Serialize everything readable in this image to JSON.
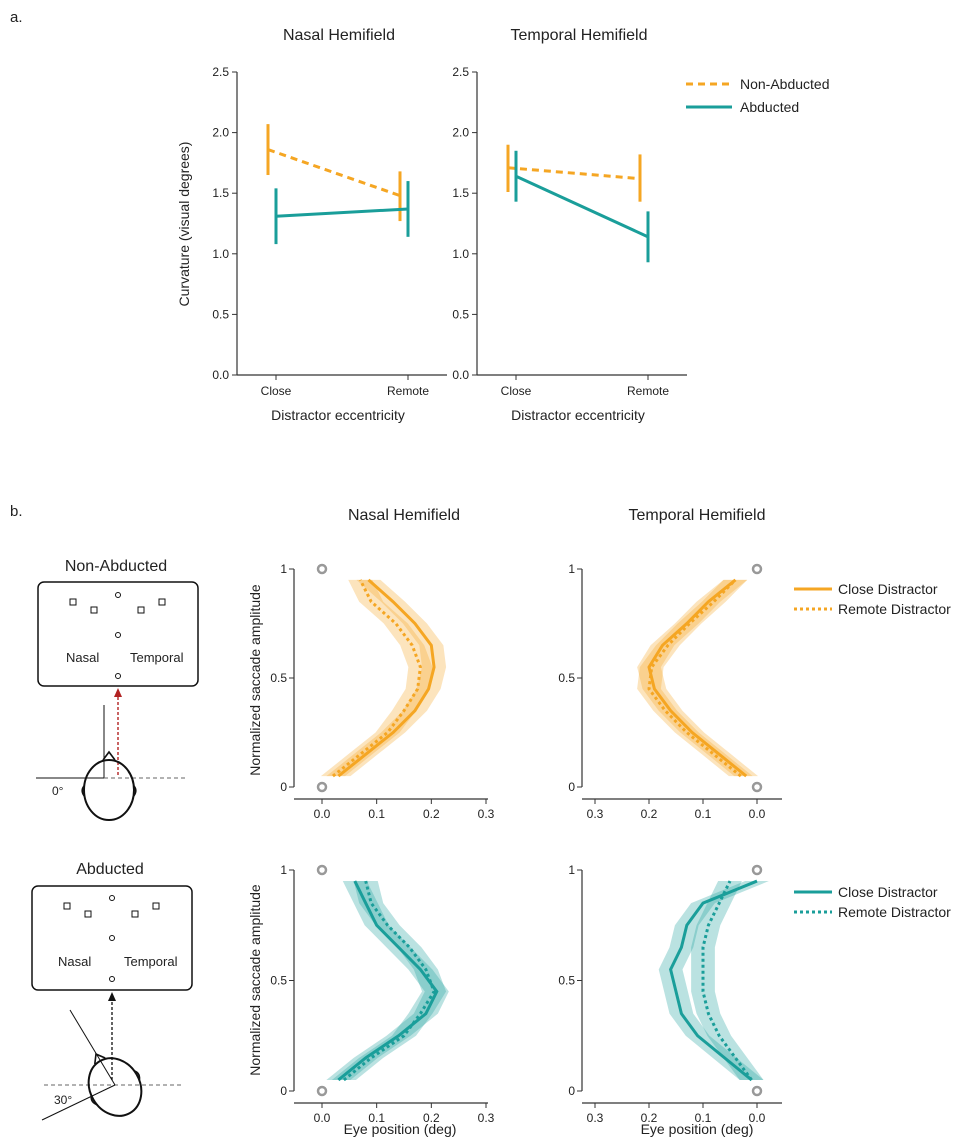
{
  "colors": {
    "orange": "#F5A623",
    "teal": "#1A9E9A",
    "axis": "#333333",
    "marker": "#999999",
    "redArrow": "#B22222"
  },
  "labels": {
    "panel_a": "a.",
    "panel_b": "b.",
    "nasal": "Nasal Hemifield",
    "temporal": "Temporal Hemifield",
    "non_abducted": "Non-Abducted",
    "abducted": "Abducted",
    "close_distractor": "Close Distractor",
    "remote_distractor": "Remote Distractor",
    "screen_nasal": "Nasal",
    "screen_temporal": "Temporal",
    "angle_0": "0°",
    "angle_30": "30°"
  },
  "chart_data": [
    {
      "id": "a-nasal",
      "type": "line",
      "title": "Nasal Hemifield",
      "xlabel": "Distractor eccentricity",
      "ylabel": "Curvature (visual degrees)",
      "categories": [
        "Close",
        "Remote"
      ],
      "ylim": [
        0,
        2.5
      ],
      "yticks": [
        "0.0",
        "0.5",
        "1.0",
        "1.5",
        "2.0",
        "2.5"
      ],
      "series": [
        {
          "name": "Non-Abducted",
          "values": [
            1.86,
            1.48
          ],
          "err_low": [
            1.65,
            1.27
          ],
          "err_high": [
            2.07,
            1.68
          ]
        },
        {
          "name": "Abducted",
          "values": [
            1.31,
            1.37
          ],
          "err_low": [
            1.08,
            1.14
          ],
          "err_high": [
            1.54,
            1.6
          ]
        }
      ]
    },
    {
      "id": "a-temporal",
      "type": "line",
      "title": "Temporal Hemifield",
      "xlabel": "Distractor eccentricity",
      "ylabel": "",
      "categories": [
        "Close",
        "Remote"
      ],
      "ylim": [
        0,
        2.5
      ],
      "yticks": [
        "0.0",
        "0.5",
        "1.0",
        "1.5",
        "2.0",
        "2.5"
      ],
      "legend": [
        "Non-Abducted",
        "Abducted"
      ],
      "series": [
        {
          "name": "Non-Abducted",
          "values": [
            1.71,
            1.62
          ],
          "err_low": [
            1.51,
            1.43
          ],
          "err_high": [
            1.9,
            1.82
          ]
        },
        {
          "name": "Abducted",
          "values": [
            1.64,
            1.14
          ],
          "err_low": [
            1.43,
            0.93
          ],
          "err_high": [
            1.85,
            1.35
          ]
        }
      ]
    },
    {
      "id": "b-nasal-nonabducted",
      "type": "line",
      "title": "Nasal Hemifield",
      "xlabel": "",
      "ylabel": "Normalized saccade amplitude",
      "xlim": [
        0,
        0.3
      ],
      "ylim": [
        0,
        1
      ],
      "xticks": [
        "0.0",
        "0.1",
        "0.2",
        "0.3"
      ],
      "yticks": [
        "0",
        "0.5",
        "1"
      ],
      "y": [
        0.05,
        0.15,
        0.25,
        0.35,
        0.45,
        0.55,
        0.65,
        0.75,
        0.85,
        0.95
      ],
      "series": [
        {
          "name": "Close Distractor",
          "x": [
            0.03,
            0.08,
            0.13,
            0.17,
            0.195,
            0.205,
            0.2,
            0.17,
            0.13,
            0.085
          ]
        },
        {
          "name": "Remote Distractor",
          "x": [
            0.02,
            0.07,
            0.12,
            0.15,
            0.175,
            0.18,
            0.165,
            0.135,
            0.09,
            0.07
          ]
        }
      ]
    },
    {
      "id": "b-temporal-nonabducted",
      "type": "line",
      "title": "Temporal Hemifield",
      "xlabel": "",
      "ylabel": "",
      "xlim": [
        0.3,
        0.0
      ],
      "ylim": [
        0,
        1
      ],
      "xticks": [
        "0.3",
        "0.2",
        "0.1",
        "0.0"
      ],
      "yticks": [
        "0",
        "0.5",
        "1"
      ],
      "legend": [
        "Close Distractor",
        "Remote Distractor"
      ],
      "y": [
        0.05,
        0.15,
        0.25,
        0.35,
        0.45,
        0.55,
        0.65,
        0.75,
        0.85,
        0.95
      ],
      "series": [
        {
          "name": "Close Distractor",
          "x": [
            0.02,
            0.07,
            0.12,
            0.16,
            0.19,
            0.2,
            0.175,
            0.13,
            0.09,
            0.04
          ]
        },
        {
          "name": "Remote Distractor",
          "x": [
            0.03,
            0.08,
            0.13,
            0.17,
            0.2,
            0.195,
            0.165,
            0.125,
            0.08,
            0.04
          ]
        }
      ]
    },
    {
      "id": "b-nasal-abducted",
      "type": "line",
      "title": "",
      "xlabel": "Eye position (deg)",
      "ylabel": "Normalized saccade amplitude",
      "xlim": [
        0,
        0.3
      ],
      "ylim": [
        0,
        1
      ],
      "xticks": [
        "0.0",
        "0.1",
        "0.2",
        "0.3"
      ],
      "yticks": [
        "0",
        "0.5",
        "1"
      ],
      "y": [
        0.05,
        0.15,
        0.25,
        0.35,
        0.45,
        0.55,
        0.65,
        0.75,
        0.85,
        0.95
      ],
      "series": [
        {
          "name": "Close Distractor",
          "x": [
            0.03,
            0.08,
            0.14,
            0.19,
            0.21,
            0.18,
            0.14,
            0.1,
            0.08,
            0.06
          ]
        },
        {
          "name": "Remote Distractor",
          "x": [
            0.04,
            0.09,
            0.15,
            0.18,
            0.205,
            0.19,
            0.16,
            0.12,
            0.09,
            0.08
          ]
        }
      ]
    },
    {
      "id": "b-temporal-abducted",
      "type": "line",
      "title": "",
      "xlabel": "Eye position (deg)",
      "ylabel": "",
      "xlim": [
        0.3,
        0.0
      ],
      "ylim": [
        0,
        1
      ],
      "xticks": [
        "0.3",
        "0.2",
        "0.1",
        "0.0"
      ],
      "yticks": [
        "0",
        "0.5",
        "1"
      ],
      "legend": [
        "Close Distractor",
        "Remote Distractor"
      ],
      "y": [
        0.05,
        0.15,
        0.25,
        0.35,
        0.45,
        0.55,
        0.65,
        0.75,
        0.85,
        0.95
      ],
      "series": [
        {
          "name": "Close Distractor",
          "x": [
            0.01,
            0.06,
            0.11,
            0.14,
            0.15,
            0.16,
            0.14,
            0.13,
            0.1,
            0.0
          ]
        },
        {
          "name": "Remote Distractor",
          "x": [
            0.01,
            0.04,
            0.07,
            0.09,
            0.1,
            0.1,
            0.1,
            0.09,
            0.07,
            0.05
          ]
        }
      ]
    }
  ]
}
